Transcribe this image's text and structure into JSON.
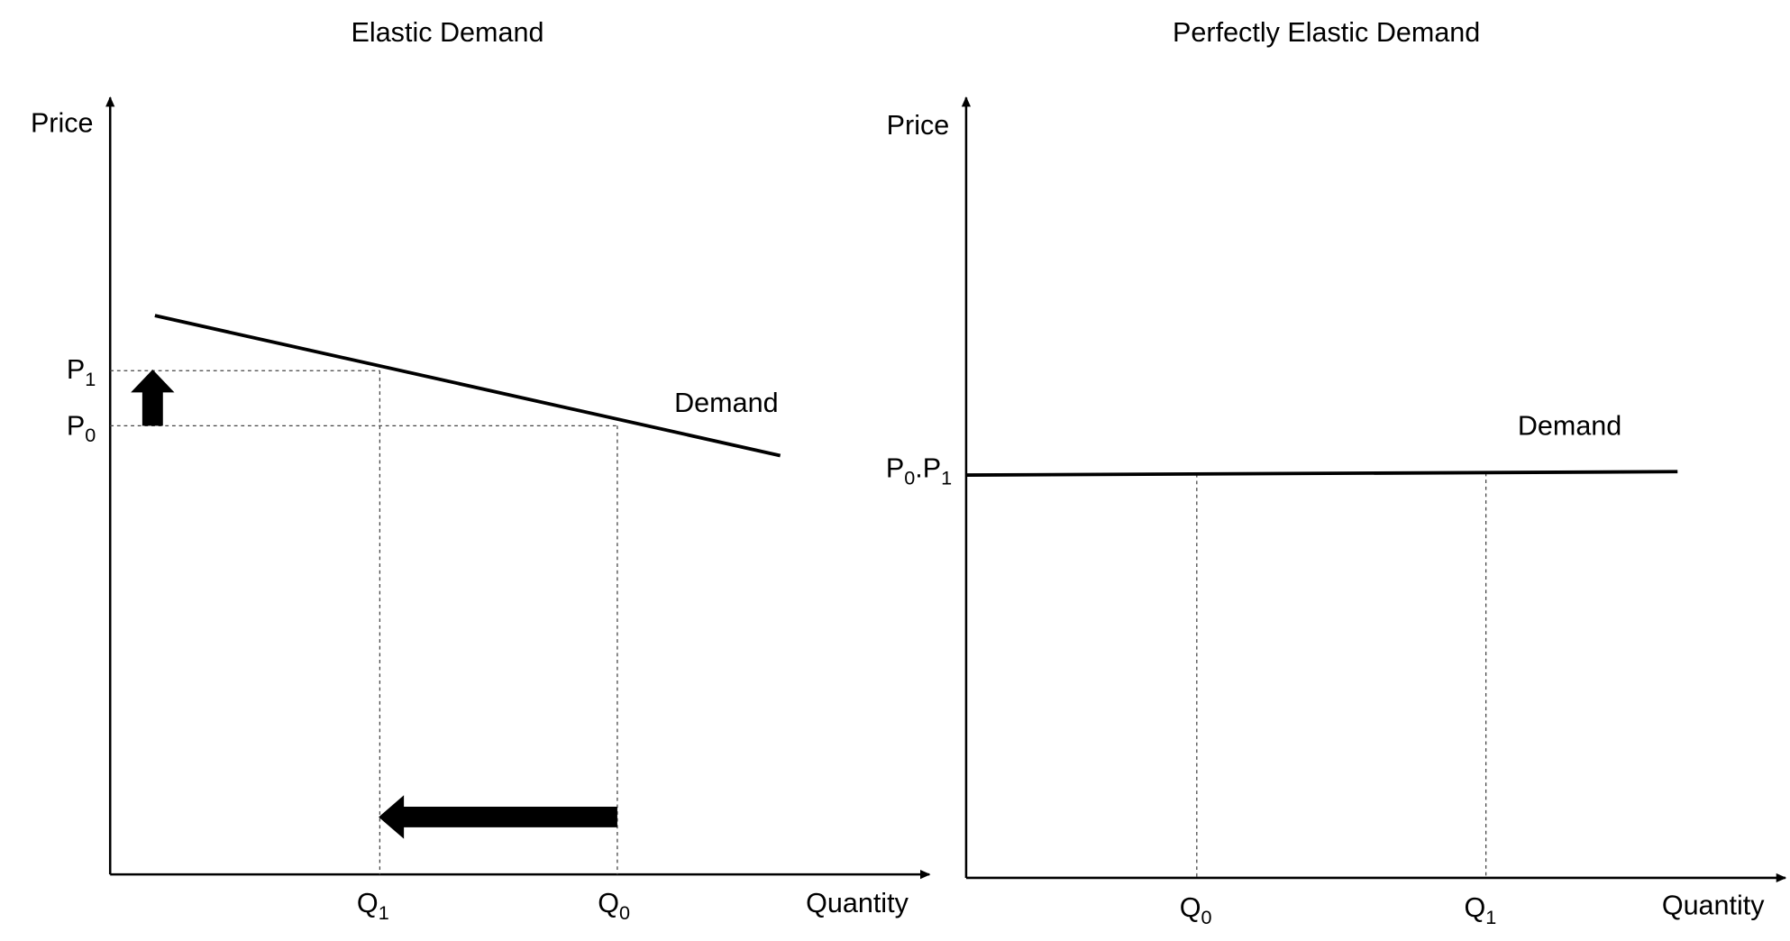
{
  "panels": [
    {
      "title": "Elastic Demand",
      "y_axis_label": "Price",
      "x_axis_label": "Quantity",
      "curve_label": "Demand",
      "price_labels": [
        {
          "base": "P",
          "sub": "1"
        },
        {
          "base": "P",
          "sub": "0"
        }
      ],
      "quantity_labels": [
        {
          "base": "Q",
          "sub": "1"
        },
        {
          "base": "Q",
          "sub": "0"
        }
      ]
    },
    {
      "title": "Perfectly Elastic Demand",
      "y_axis_label": "Price",
      "x_axis_label": "Quantity",
      "curve_label": "Demand",
      "price_label": {
        "first": "P",
        "first_sub": "0",
        "separator": ".",
        "second": "P",
        "second_sub": "1"
      },
      "quantity_labels": [
        {
          "base": "Q",
          "sub": "0"
        },
        {
          "base": "Q",
          "sub": "1"
        }
      ]
    }
  ]
}
